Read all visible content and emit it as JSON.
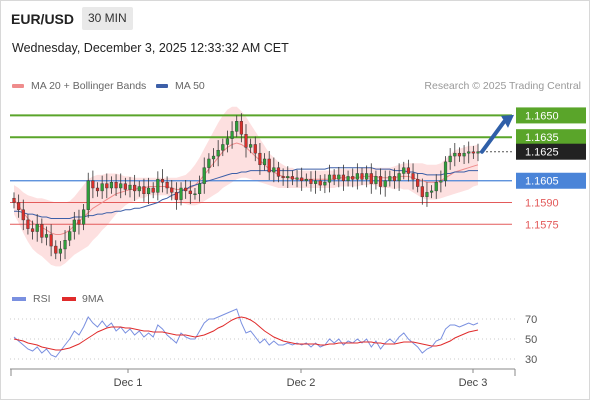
{
  "header": {
    "symbol": "EUR/USD",
    "timeframe": "30 MIN",
    "datetime": "Wednesday, December 3, 2025 12:33:32 AM CET"
  },
  "legend": {
    "ma20_label": "MA 20 + Bollinger Bands",
    "ma50_label": "MA 50",
    "credit": "Research © 2025 Trading Central",
    "rsi_label": "RSI",
    "rsi_ma_label": "9MA"
  },
  "colors": {
    "bull": "#2e9e3a",
    "bear": "#d9302c",
    "ma20": "#ef8c8c",
    "ma50": "#3d5fa8",
    "band": "#fde0e0",
    "resistance": "#5aa52a",
    "support": "#4a84d8",
    "support_red": "#e35a5a",
    "rsi": "#7a90e0",
    "rsi_ma": "#e02b2b"
  },
  "chart_data": [
    {
      "type": "candlestick",
      "x_ticks": [
        "Dec 1",
        "Dec 2",
        "Dec 3"
      ],
      "ylim": [
        1.1538,
        1.1662
      ],
      "current_price": {
        "label": "1.1625",
        "value": 1.1625
      },
      "levels": [
        {
          "label": "1.1650",
          "value": 1.165,
          "kind": "resistance"
        },
        {
          "label": "1.1635",
          "value": 1.1635,
          "kind": "resistance"
        },
        {
          "label": "1.1605",
          "value": 1.1605,
          "kind": "pivot"
        },
        {
          "label": "1.1590",
          "value": 1.159,
          "kind": "support"
        },
        {
          "label": "1.1575",
          "value": 1.1575,
          "kind": "support"
        }
      ],
      "arrow": {
        "from": 1.1625,
        "to": 1.1649
      },
      "closes": [
        1.159,
        1.1585,
        1.1578,
        1.1572,
        1.157,
        1.1575,
        1.1566,
        1.1568,
        1.156,
        1.1555,
        1.1558,
        1.1564,
        1.157,
        1.1578,
        1.1575,
        1.1585,
        1.1605,
        1.16,
        1.1598,
        1.1603,
        1.16,
        1.1604,
        1.16,
        1.1603,
        1.1599,
        1.1602,
        1.1598,
        1.1601,
        1.1596,
        1.16,
        1.1597,
        1.1606,
        1.1604,
        1.16,
        1.1597,
        1.1592,
        1.16,
        1.1598,
        1.1596,
        1.1596,
        1.1603,
        1.1614,
        1.162,
        1.1622,
        1.1626,
        1.163,
        1.1634,
        1.1639,
        1.1646,
        1.1637,
        1.1628,
        1.163,
        1.1624,
        1.1616,
        1.162,
        1.1611,
        1.1614,
        1.1608,
        1.1607,
        1.1608,
        1.1606,
        1.1607,
        1.1605,
        1.1606,
        1.1603,
        1.1605,
        1.1602,
        1.1604,
        1.1609,
        1.1606,
        1.1609,
        1.1605,
        1.1608,
        1.1606,
        1.161,
        1.1606,
        1.161,
        1.1603,
        1.1608,
        1.1601,
        1.1605,
        1.1608,
        1.1605,
        1.161,
        1.1614,
        1.161,
        1.1606,
        1.1601,
        1.1594,
        1.1597,
        1.1598,
        1.1604,
        1.1605,
        1.1618,
        1.1622,
        1.1624,
        1.1622,
        1.1624,
        1.1625,
        1.1624,
        1.1625
      ],
      "ma20": [
        1.1592,
        1.1588,
        1.1583,
        1.1579,
        1.1576,
        1.1574,
        1.1573,
        1.1571,
        1.1569,
        1.1568,
        1.1568,
        1.1569,
        1.1571,
        1.1574,
        1.1577,
        1.158,
        1.1583,
        1.1586,
        1.1588,
        1.159,
        1.1592,
        1.1594,
        1.1596,
        1.1597,
        1.1598,
        1.1599,
        1.1599,
        1.16,
        1.16,
        1.1601,
        1.1601,
        1.1601,
        1.1601,
        1.1601,
        1.16,
        1.1599,
        1.1599,
        1.1599,
        1.16,
        1.1602,
        1.1605,
        1.1609,
        1.1613,
        1.1617,
        1.1621,
        1.1625,
        1.1628,
        1.163,
        1.1631,
        1.163,
        1.1628,
        1.1625,
        1.1622,
        1.1619,
        1.1616,
        1.1613,
        1.1611,
        1.1609,
        1.1608,
        1.1607,
        1.1607,
        1.1606,
        1.1606,
        1.1606,
        1.1606,
        1.1606,
        1.1606,
        1.1606,
        1.1606,
        1.1606,
        1.1607,
        1.1607,
        1.1607,
        1.1607,
        1.1607,
        1.1608,
        1.1608,
        1.1608,
        1.1608,
        1.1607,
        1.1607,
        1.1607,
        1.1607,
        1.1608,
        1.1608,
        1.1608,
        1.1607,
        1.1606,
        1.1605,
        1.1604,
        1.1604,
        1.1604,
        1.1605,
        1.1607,
        1.1609,
        1.1611,
        1.1612,
        1.1613,
        1.1614,
        1.1615,
        1.1616
      ],
      "ma50": [
        1.1584,
        1.1584,
        1.1583,
        1.1582,
        1.1582,
        1.1581,
        1.158,
        1.158,
        1.1579,
        1.1579,
        1.1579,
        1.1579,
        1.1579,
        1.158,
        1.158,
        1.158,
        1.1581,
        1.1581,
        1.1582,
        1.1582,
        1.1583,
        1.1583,
        1.1584,
        1.1584,
        1.1585,
        1.1585,
        1.1586,
        1.1586,
        1.1587,
        1.1588,
        1.1589,
        1.159,
        1.1592,
        1.1593,
        1.1595,
        1.1596,
        1.1598,
        1.1599,
        1.1601,
        1.1602,
        1.1603,
        1.1604,
        1.1605,
        1.1606,
        1.1607,
        1.1608,
        1.1609,
        1.161,
        1.161,
        1.1611,
        1.1611,
        1.1612,
        1.1612,
        1.1612,
        1.1612,
        1.1612,
        1.1612,
        1.1612,
        1.1612,
        1.1612,
        1.1612,
        1.1613,
        1.1613,
        1.1613,
        1.1613,
        1.1613,
        1.1613,
        1.1613,
        1.1614,
        1.1614,
        1.1614,
        1.1614,
        1.1614,
        1.1614,
        1.1614,
        1.1614,
        1.1614,
        1.1614,
        1.1613,
        1.1613,
        1.1613,
        1.1613,
        1.1612,
        1.1612,
        1.1612,
        1.1611,
        1.1611,
        1.161,
        1.161,
        1.1609,
        1.1609,
        1.1609,
        1.1609,
        1.161,
        1.161,
        1.1611,
        1.1611,
        1.1611,
        1.1612,
        1.1612,
        1.1612
      ],
      "band_width": [
        0.001,
        0.0012,
        0.0014,
        0.0016,
        0.0018,
        0.0019,
        0.002,
        0.0021,
        0.0022,
        0.0022,
        0.0022,
        0.0021,
        0.002,
        0.002,
        0.0021,
        0.0022,
        0.0023,
        0.0022,
        0.0021,
        0.0019,
        0.0018,
        0.0016,
        0.0014,
        0.0012,
        0.001,
        0.0009,
        0.0008,
        0.0007,
        0.0007,
        0.0006,
        0.0006,
        0.0006,
        0.0006,
        0.0006,
        0.0007,
        0.0008,
        0.0009,
        0.001,
        0.0012,
        0.0014,
        0.0016,
        0.0018,
        0.002,
        0.0022,
        0.0024,
        0.0025,
        0.0026,
        0.0026,
        0.0025,
        0.0023,
        0.0021,
        0.0019,
        0.0017,
        0.0015,
        0.0013,
        0.0011,
        0.001,
        0.0009,
        0.0008,
        0.0007,
        0.0007,
        0.0006,
        0.0006,
        0.0006,
        0.0006,
        0.0006,
        0.0006,
        0.0006,
        0.0006,
        0.0006,
        0.0006,
        0.0006,
        0.0006,
        0.0006,
        0.0006,
        0.0006,
        0.0006,
        0.0006,
        0.0006,
        0.0007,
        0.0007,
        0.0007,
        0.0008,
        0.0008,
        0.0009,
        0.0009,
        0.001,
        0.0011,
        0.0012,
        0.0012,
        0.0012,
        0.0012,
        0.0012,
        0.0013,
        0.0014,
        0.0015,
        0.0015,
        0.0015,
        0.0015,
        0.0014,
        0.0014
      ]
    },
    {
      "type": "line",
      "y_ticks": [
        70,
        50,
        30
      ],
      "ylim": [
        20,
        80
      ],
      "series": [
        {
          "name": "RSI",
          "values": [
            52,
            48,
            44,
            40,
            38,
            42,
            36,
            40,
            34,
            32,
            38,
            44,
            50,
            58,
            54,
            62,
            72,
            66,
            62,
            68,
            62,
            66,
            58,
            62,
            56,
            60,
            54,
            58,
            52,
            56,
            52,
            64,
            60,
            54,
            50,
            46,
            56,
            52,
            50,
            50,
            58,
            66,
            70,
            70,
            72,
            74,
            76,
            78,
            80,
            66,
            56,
            58,
            52,
            46,
            50,
            44,
            48,
            44,
            44,
            46,
            44,
            46,
            44,
            46,
            42,
            46,
            42,
            44,
            50,
            46,
            50,
            44,
            48,
            46,
            50,
            46,
            50,
            42,
            48,
            40,
            46,
            50,
            46,
            52,
            56,
            50,
            46,
            42,
            36,
            40,
            42,
            48,
            50,
            60,
            64,
            64,
            62,
            64,
            66,
            64,
            66
          ]
        },
        {
          "name": "9MA",
          "values": [
            50,
            49,
            48,
            46,
            45,
            44,
            42,
            41,
            40,
            39,
            39,
            40,
            41,
            43,
            45,
            48,
            51,
            54,
            57,
            59,
            61,
            62,
            62,
            62,
            61,
            61,
            60,
            59,
            58,
            58,
            57,
            57,
            57,
            56,
            55,
            54,
            54,
            54,
            53,
            52,
            53,
            54,
            56,
            58,
            61,
            63,
            66,
            69,
            71,
            72,
            71,
            69,
            66,
            62,
            58,
            55,
            52,
            50,
            48,
            47,
            46,
            45,
            45,
            45,
            45,
            45,
            44,
            44,
            45,
            45,
            46,
            46,
            46,
            46,
            46,
            47,
            47,
            47,
            46,
            46,
            45,
            45,
            45,
            46,
            47,
            47,
            47,
            46,
            45,
            44,
            43,
            43,
            44,
            46,
            48,
            51,
            53,
            55,
            57,
            58,
            59
          ]
        }
      ]
    }
  ]
}
